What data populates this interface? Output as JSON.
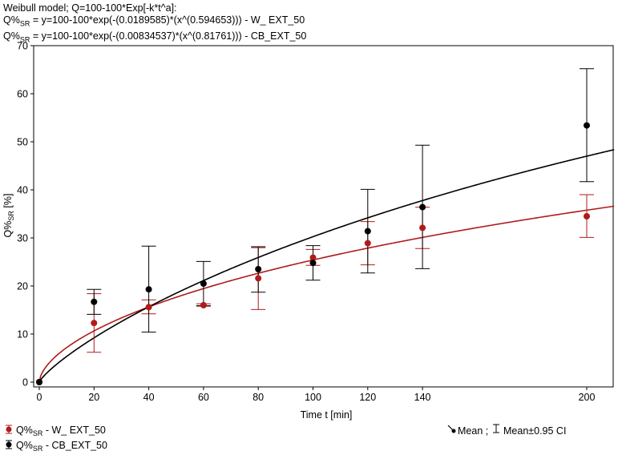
{
  "header": {
    "line1": "Weibull model; Q=100-100*Exp[-k*t^a]:",
    "line2_prefix": "Q%",
    "line2_sub": "SR",
    "line2_rest": " = y=100-100*exp(-(0.0189585)*(x^(0.594653))) - W_ EXT_50",
    "line3_prefix": "Q%",
    "line3_sub": "SR",
    "line3_rest": " = y=100-100*exp(-(0.00834537)*(x^(0.81761))) - CB_EXT_50"
  },
  "chart_data": {
    "type": "scatter",
    "xlabel": "Time t [min]",
    "ylabel_main": "Q%",
    "ylabel_sub": "SR",
    "ylabel_unit": " [%]",
    "xlim": [
      0,
      210
    ],
    "ylim": [
      0,
      70
    ],
    "xticks": [
      0,
      20,
      40,
      60,
      80,
      100,
      120,
      140,
      200
    ],
    "yticks": [
      0,
      10,
      20,
      30,
      40,
      50,
      60,
      70
    ],
    "grid": false,
    "series": [
      {
        "legend_prefix": "Q%",
        "legend_sub": "SR",
        "legend_rest": " - W_ EXT_50",
        "color": "#b01b1b",
        "x": [
          0,
          20,
          40,
          60,
          80,
          100,
          120,
          140,
          200
        ],
        "mean": [
          0,
          12.3,
          15.6,
          16.0,
          21.6,
          25.9,
          28.9,
          32.1,
          34.5
        ],
        "lower": [
          0,
          6.2,
          14.2,
          15.8,
          15.1,
          24.3,
          24.4,
          27.8,
          30.1
        ],
        "upper": [
          0,
          18.4,
          17.1,
          16.3,
          28.2,
          27.6,
          33.4,
          36.4,
          39.0
        ],
        "fit": {
          "k": 0.0189585,
          "a": 0.594653
        }
      },
      {
        "legend_prefix": "Q%",
        "legend_sub": "SR",
        "legend_rest": " - CB_EXT_50",
        "color": "#000000",
        "x": [
          0,
          20,
          40,
          60,
          80,
          100,
          120,
          140,
          200
        ],
        "mean": [
          0,
          16.7,
          19.3,
          20.5,
          23.5,
          24.8,
          31.4,
          36.4,
          53.4
        ],
        "lower": [
          0,
          14.1,
          10.4,
          15.9,
          18.7,
          21.2,
          22.7,
          23.6,
          41.7
        ],
        "upper": [
          0,
          19.3,
          28.3,
          25.1,
          28.0,
          28.4,
          40.1,
          49.3,
          65.2
        ],
        "fit": {
          "k": 0.00834537,
          "a": 0.81761
        }
      }
    ],
    "legend_right": {
      "mean_label": "Mean ;",
      "ci_label": "Mean±0.95 CI"
    }
  }
}
